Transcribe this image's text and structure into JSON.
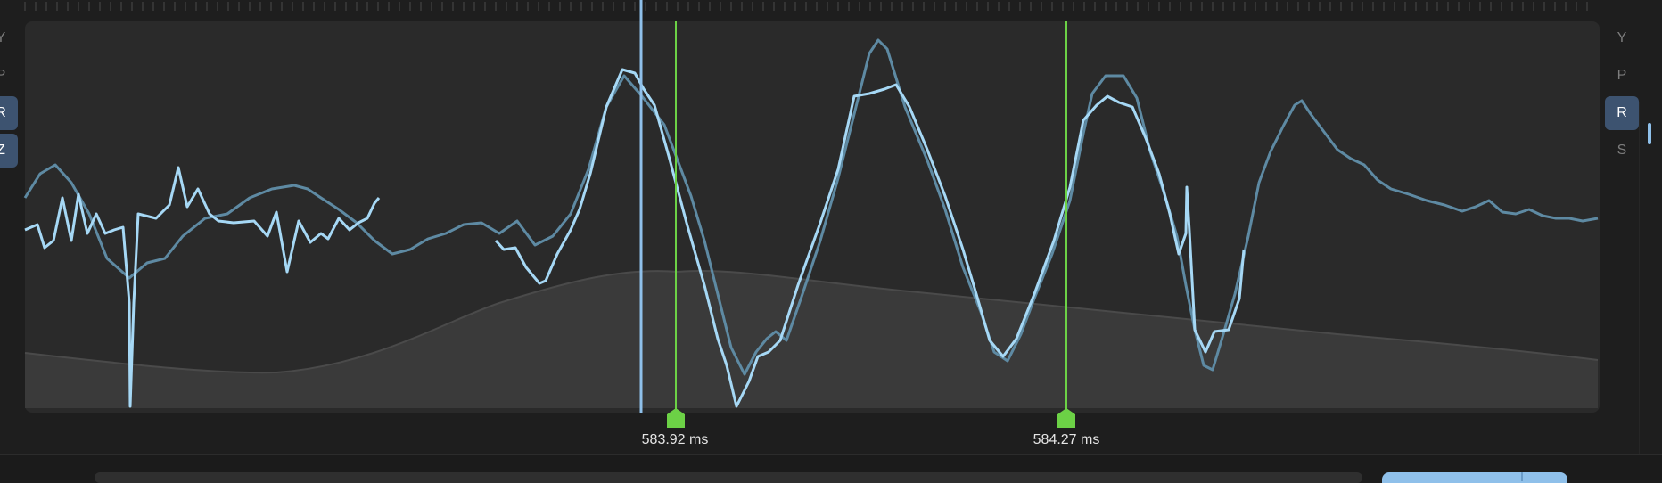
{
  "axis_buttons_left": [
    {
      "label": "Y",
      "active": false
    },
    {
      "label": "P",
      "active": false
    },
    {
      "label": "R",
      "active": true
    },
    {
      "label": "Z",
      "active": true
    }
  ],
  "axis_buttons_right": [
    {
      "label": "Y",
      "active": false
    },
    {
      "label": "P",
      "active": false
    },
    {
      "label": "R",
      "active": true
    },
    {
      "label": "S",
      "active": false
    }
  ],
  "markers": [
    {
      "label": "583.92 ms",
      "color": "#6cd146"
    },
    {
      "label": "584.27 ms",
      "color": "#6cd146"
    }
  ],
  "colors": {
    "trace_primary": "#a6d8f5",
    "trace_secondary": "#5e8aa3",
    "cursor": "#8fc0ea",
    "marker": "#6cd146",
    "throttle_fill": "#3a3a3a"
  }
}
